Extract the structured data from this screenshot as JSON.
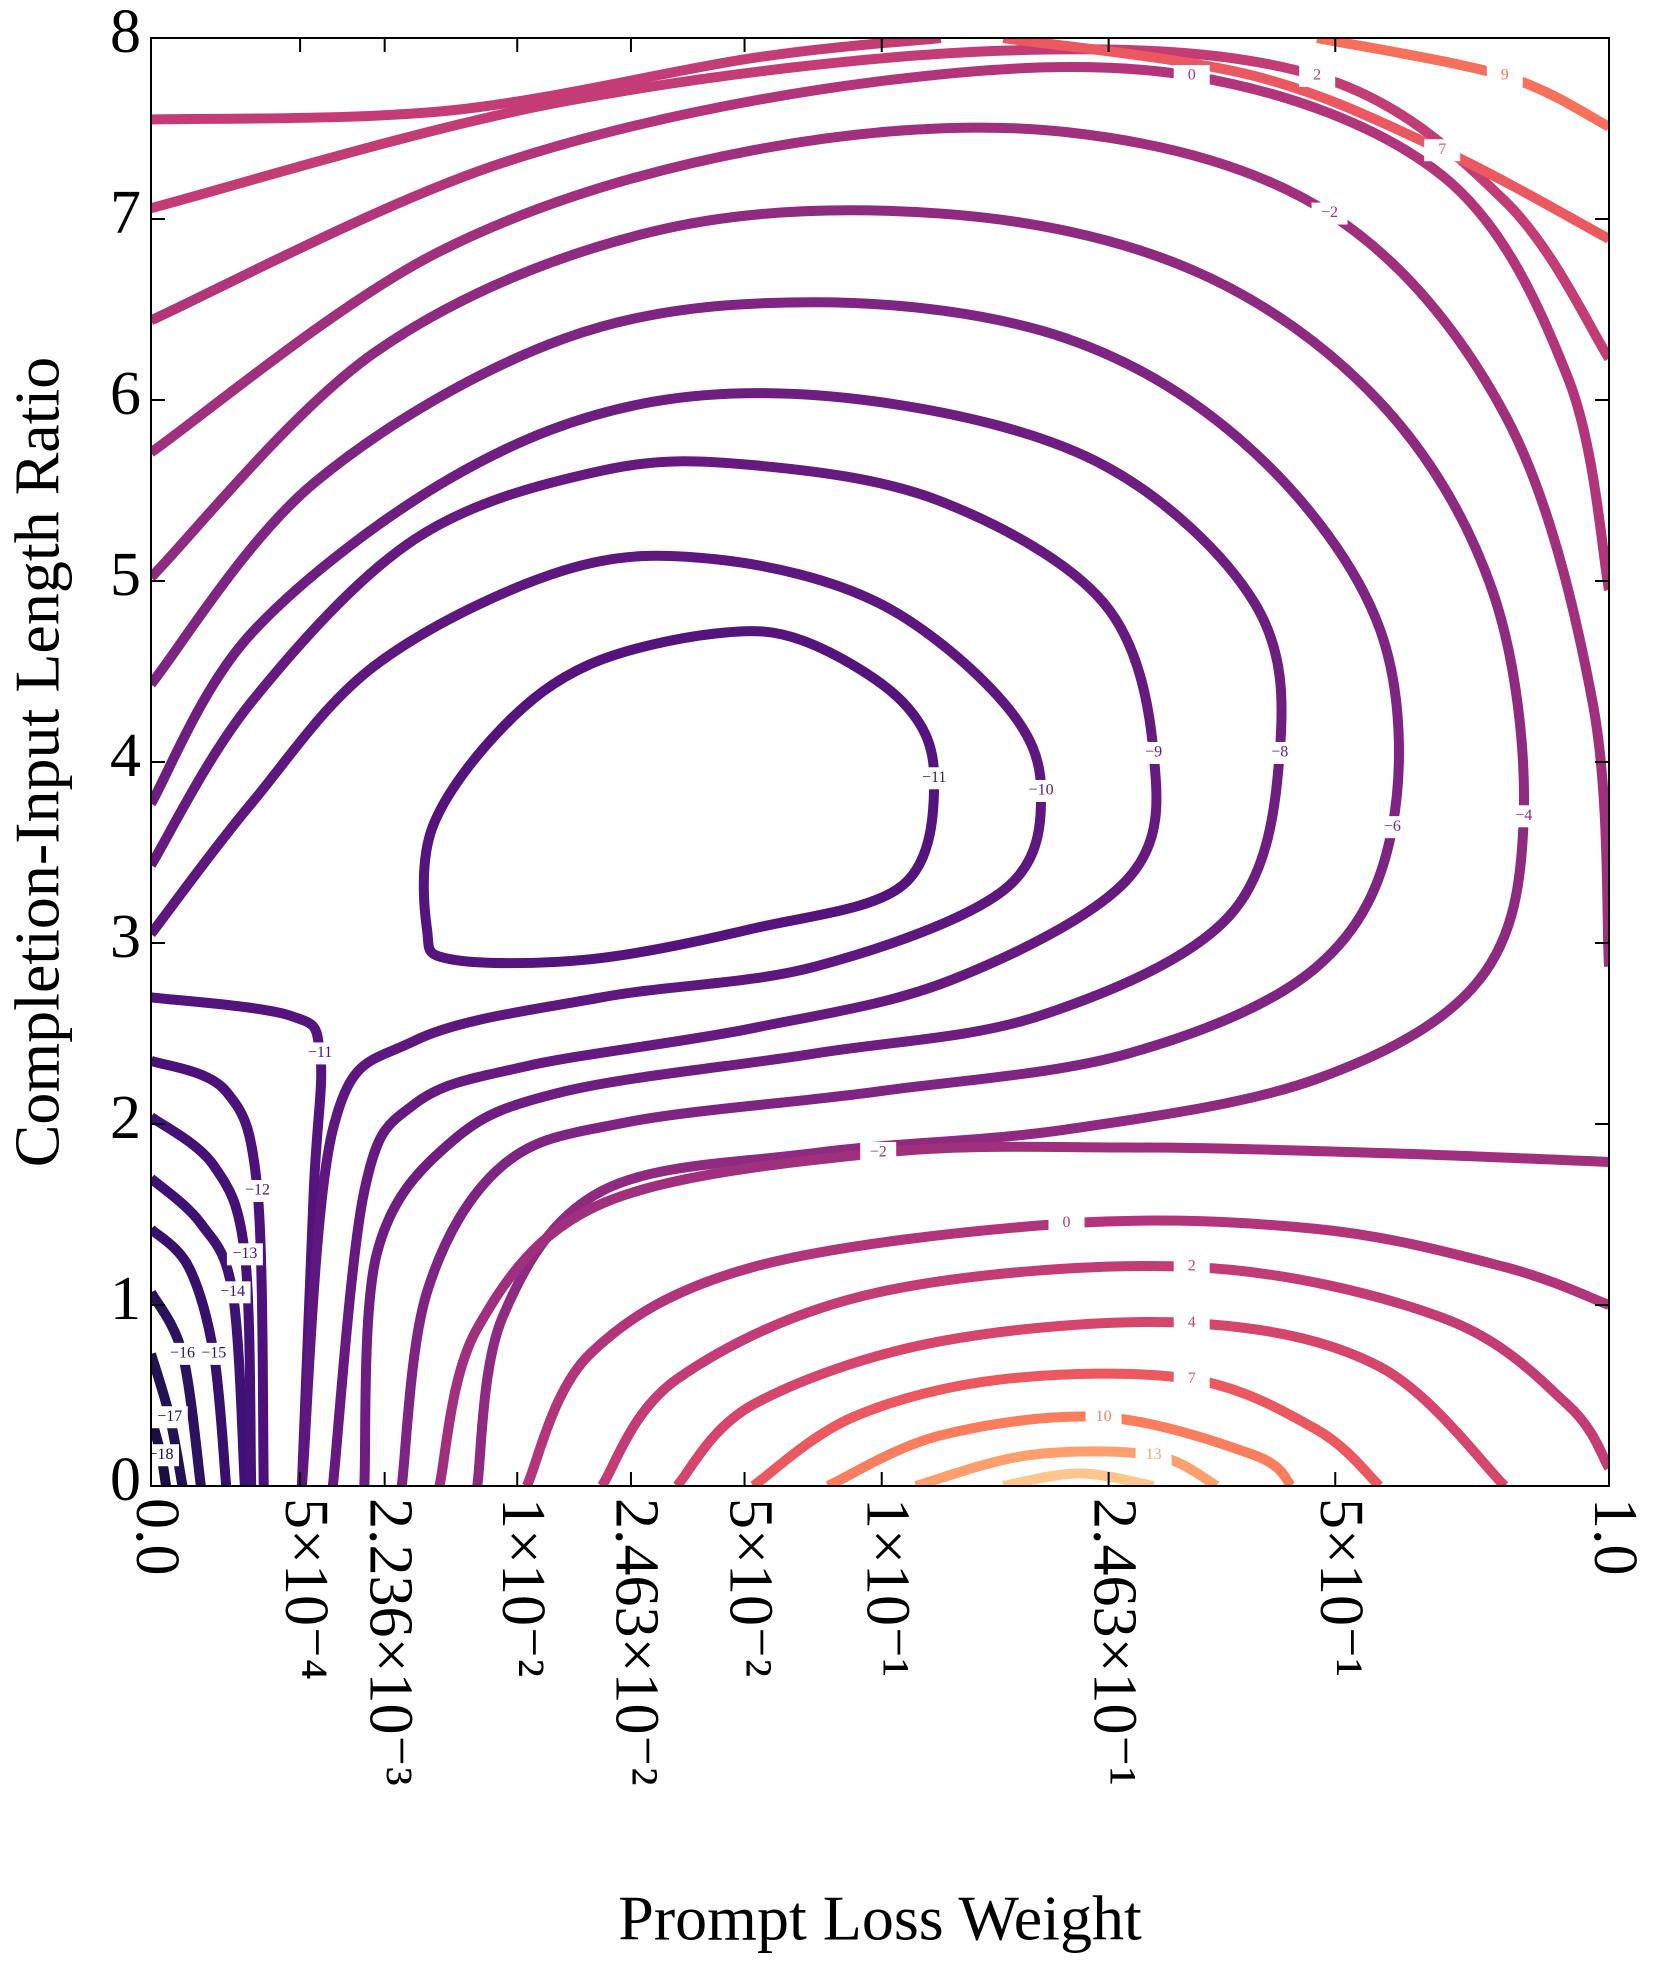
{
  "chart_data": {
    "type": "contour",
    "xlabel": "Prompt Loss Weight",
    "ylabel": "Completion-Input Length Ratio",
    "xscale": "power",
    "xpower": 0.3,
    "xlim": [
      0,
      1
    ],
    "ylim": [
      0,
      8
    ],
    "xticks": [
      {
        "value": 0,
        "label": "0.0"
      },
      {
        "value": 0.0005,
        "label": "5×10⁻⁴"
      },
      {
        "value": 0.002236,
        "label": "2.236×10⁻³"
      },
      {
        "value": 0.01,
        "label": "1×10⁻²"
      },
      {
        "value": 0.02463,
        "label": "2.463×10⁻²"
      },
      {
        "value": 0.05,
        "label": "5×10⁻²"
      },
      {
        "value": 0.1,
        "label": "1×10⁻¹"
      },
      {
        "value": 0.2463,
        "label": "2.463×10⁻¹"
      },
      {
        "value": 0.5,
        "label": "5×10⁻¹"
      },
      {
        "value": 1,
        "label": "1.0"
      }
    ],
    "yticks": [
      0,
      1,
      2,
      3,
      4,
      5,
      6,
      7,
      8
    ],
    "contours": [
      {
        "level": -18,
        "label": "−18",
        "color": "#1b0c41",
        "x": [
          0,
          6.2e-08,
          2.4e-07
        ],
        "y": [
          0.38,
          0.17,
          0
        ]
      },
      {
        "level": -17,
        "label": "−17",
        "color": "#231151",
        "x": [
          0,
          5e-07,
          2.8e-06
        ],
        "y": [
          0.73,
          0.38,
          0
        ]
      },
      {
        "level": -16,
        "label": "−16",
        "color": "#2c115f",
        "x": [
          0,
          2.8e-06,
          1.3e-05
        ],
        "y": [
          1.07,
          0.73,
          0
        ]
      },
      {
        "level": -15,
        "label": "−15",
        "color": "#36106b",
        "x": [
          0,
          5.1e-06,
          2.8e-05,
          5.1e-05
        ],
        "y": [
          1.42,
          1.21,
          0.73,
          0
        ]
      },
      {
        "level": -14,
        "label": "−14",
        "color": "#3e1174",
        "x": [
          0,
          1.3e-05,
          6.7e-05,
          0.000107
        ],
        "y": [
          1.7,
          1.45,
          1.07,
          0
        ]
      },
      {
        "level": -13,
        "label": "−13",
        "color": "#451077",
        "x": [
          0,
          2.8e-05,
          0.000107,
          0.000133
        ],
        "y": [
          2.04,
          1.77,
          1.28,
          0
        ]
      },
      {
        "level": -12,
        "label": "−12",
        "color": "#4d117b",
        "x": [
          0,
          5.1e-05,
          0.000163,
          0.000197
        ],
        "y": [
          2.35,
          2.18,
          1.63,
          0
        ]
      },
      {
        "level": -11,
        "label": "−11",
        "color": "#55137d",
        "x": [
          0,
          0.00039,
          0.00076,
          0.00067,
          0.00052
        ],
        "y": [
          2.7,
          2.6,
          2.39,
          1.63,
          0
        ]
      },
      {
        "level": -11,
        "label": "−11",
        "color": "#55137d",
        "closed": true,
        "x": [
          0.00416,
          0.00389,
          0.00515,
          0.0183,
          0.0525,
          0.11,
          0.126,
          0.11,
          0.0684,
          0.0423,
          0.0183,
          0.00871
        ],
        "y": [
          3.64,
          3.08,
          2.91,
          2.91,
          3.08,
          3.32,
          3.91,
          4.33,
          4.67,
          4.71,
          4.54,
          4.19
        ]
      },
      {
        "level": -10,
        "label": "−10",
        "color": "#5e177f",
        "x": [
          0,
          0.000133,
          0.00199,
          0.015,
          0.0423,
          0.0984,
          0.167,
          0.193,
          0.167,
          0.0728,
          0.02,
          0.00334,
          0.00097,
          0.00052
        ],
        "y": [
          3.05,
          3.77,
          4.54,
          5.06,
          5.12,
          4.88,
          4.33,
          3.84,
          3.29,
          2.87,
          2.7,
          2.46,
          1.97,
          0
        ]
      },
      {
        "level": -9,
        "label": "−9",
        "color": "#661a80",
        "x": [
          0,
          0.000133,
          0.00334,
          0.02,
          0.0525,
          0.1296,
          0.242,
          0.287,
          0.264,
          0.1366,
          0.0525,
          0.0109,
          0.00334,
          0.00165,
          0.00097
        ],
        "y": [
          3.43,
          4.33,
          5.23,
          5.61,
          5.64,
          5.44,
          4.88,
          4.05,
          3.36,
          2.8,
          2.53,
          2.32,
          2.11,
          1.63,
          0
        ]
      },
      {
        "level": -8,
        "label": "−8",
        "color": "#6e1e81",
        "x": [
          0,
          0.000133,
          0.00515,
          0.0285,
          0.0984,
          0.242,
          0.395,
          0.426,
          0.366,
          0.193,
          0.0728,
          0.015,
          0.00515,
          0.00199,
          0.00165
        ],
        "y": [
          3.77,
          4.71,
          5.57,
          5.99,
          5.99,
          5.64,
          4.88,
          4.05,
          3.15,
          2.6,
          2.39,
          2.18,
          1.9,
          1.28,
          0
        ]
      },
      {
        "level": -6,
        "label": "−6",
        "color": "#7e2482",
        "x": [
          0,
          0.00067,
          0.015,
          0.0728,
          0.212,
          0.395,
          0.565,
          0.585,
          0.475,
          0.264,
          0.0984,
          0.024,
          0.00871,
          0.00389,
          0.00283
        ],
        "y": [
          4.43,
          5.54,
          6.34,
          6.54,
          6.34,
          5.71,
          4.74,
          3.64,
          2.87,
          2.39,
          2.18,
          2.01,
          1.77,
          1.07,
          0
        ]
      },
      {
        "level": -4,
        "label": "−4",
        "color": "#8f2a81",
        "x": [
          0,
          0.00199,
          0.0285,
          0.1296,
          0.325,
          0.565,
          0.757,
          0.818,
          0.734,
          0.475,
          0.212,
          0.0728,
          0.02,
          0.00871,
          0.0068
        ],
        "y": [
          5.02,
          6.27,
          6.93,
          7.03,
          6.72,
          5.99,
          4.95,
          3.7,
          2.8,
          2.25,
          1.97,
          1.84,
          1.63,
          0.93,
          0
        ]
      },
      {
        "level": -2,
        "label": "−2",
        "color": "#a0307e",
        "x": [
          0,
          0.00451,
          0.0525,
          0.212,
          0.492,
          0.781,
          0.963,
          1
        ],
        "y": [
          5.71,
          6.82,
          7.38,
          7.48,
          7.03,
          5.92,
          4.33,
          2.87
        ]
      },
      {
        "level": 0,
        "label": "0",
        "color": "#b2357b",
        "x": [
          0,
          0.00871,
          0.0984,
          0.325,
          0.667,
          0.908,
          1
        ],
        "y": [
          6.44,
          7.31,
          7.76,
          7.79,
          7.24,
          6.13,
          4.95
        ]
      },
      {
        "level": 2,
        "label": "2",
        "color": "#c43c75",
        "x": [
          0,
          0.015,
          0.167,
          0.475,
          0.781,
          1
        ],
        "y": [
          7.06,
          7.65,
          7.93,
          7.79,
          7.1,
          6.23
        ]
      },
      {
        "level": 4,
        "color": "#c43c75",
        "x": [
          0,
          0.00515,
          0.0525,
          0.1296
        ],
        "y": [
          7.55,
          7.6,
          7.89,
          8.0
        ]
      },
      {
        "level": 7,
        "label": "7",
        "color": "#ec5860",
        "x": [
          0.167,
          0.395,
          0.667,
          1
        ],
        "y": [
          8.0,
          7.79,
          7.38,
          6.89
        ]
      },
      {
        "level": 9,
        "label": "9",
        "color": "#f7705c",
        "x": [
          0.475,
          0.781,
          1
        ],
        "y": [
          8.0,
          7.79,
          7.51
        ]
      },
      {
        "level": -2,
        "label": "−2",
        "color": "#a0307e",
        "x": [
          0.00451,
          0.0068,
          0.02,
          0.0984,
          0.264,
          0.565,
          1
        ],
        "y": [
          0,
          0.87,
          1.56,
          1.84,
          1.87,
          1.84,
          1.79
        ]
      },
      {
        "level": 0,
        "label": "0",
        "color": "#b2357b",
        "x": [
          0.0109,
          0.0183,
          0.0525,
          0.212,
          0.475,
          0.781,
          1
        ],
        "y": [
          0,
          0.73,
          1.21,
          1.45,
          1.42,
          1.21,
          1.0
        ]
      },
      {
        "level": 2,
        "label": "2",
        "color": "#c43c75",
        "x": [
          0.02,
          0.0334,
          0.0984,
          0.325,
          0.667,
          0.908,
          1
        ],
        "y": [
          0,
          0.59,
          1.07,
          1.21,
          0.93,
          0.45,
          0.1
        ]
      },
      {
        "level": 4,
        "label": "4",
        "color": "#d6456c",
        "x": [
          0.0334,
          0.0525,
          0.1296,
          0.325,
          0.565,
          0.781
        ],
        "y": [
          0,
          0.45,
          0.8,
          0.9,
          0.66,
          0
        ]
      },
      {
        "level": 7,
        "label": "7",
        "color": "#ec5860",
        "x": [
          0.0525,
          0.0874,
          0.167,
          0.325,
          0.475,
          0.565
        ],
        "y": [
          0,
          0.38,
          0.59,
          0.59,
          0.31,
          0
        ]
      },
      {
        "level": 10,
        "label": "10",
        "color": "#fa7d5e",
        "x": [
          0.0775,
          0.1296,
          0.242,
          0.395,
          0.441
        ],
        "y": [
          0,
          0.28,
          0.38,
          0.17,
          0
        ]
      },
      {
        "level": 13,
        "label": "13",
        "color": "#fe9f6d",
        "x": [
          0.1164,
          0.184,
          0.287,
          0.352
        ],
        "y": [
          0,
          0.17,
          0.17,
          0
        ]
      },
      {
        "level": 16,
        "color": "#fec68a",
        "x": [
          0.167,
          0.222,
          0.287
        ],
        "y": [
          0,
          0.07,
          0
        ]
      }
    ]
  }
}
